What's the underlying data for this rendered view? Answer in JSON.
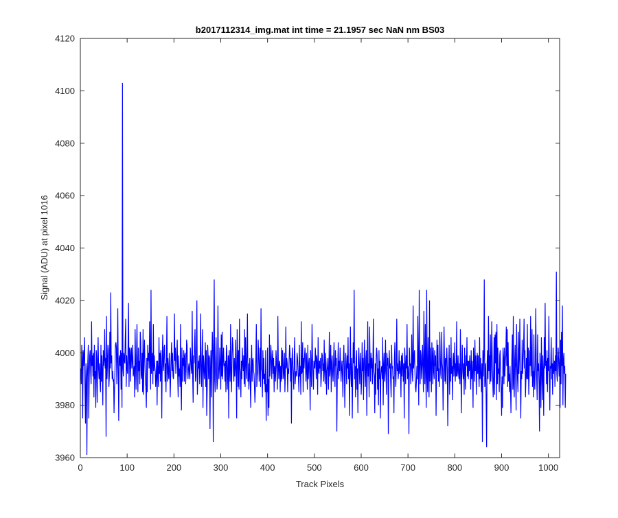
{
  "chart_data": {
    "type": "line",
    "title": "b2017112314_img.mat int time = 21.1957 sec  NaN nm BS03",
    "xlabel": "Track Pixels",
    "ylabel": "Signal (ADU) at pixel 1016",
    "xlim": [
      0,
      1024
    ],
    "ylim": [
      3960,
      4120
    ],
    "xticks": [
      "0",
      "100",
      "200",
      "300",
      "400",
      "500",
      "600",
      "700",
      "800",
      "900",
      "1000"
    ],
    "yticks": [
      "3960",
      "3980",
      "4000",
      "4020",
      "4040",
      "4060",
      "4080",
      "4100",
      "4120"
    ],
    "grid": false,
    "legend": "none",
    "series": [
      {
        "color": "#0000ff",
        "x_start": 1,
        "x_step": 1,
        "values": [
          3994,
          3988,
          4003,
          3998,
          3975,
          4001,
          3995,
          3999,
          4006,
          3985,
          3973,
          3996,
          3993,
          3961,
          3990,
          3997,
          4003,
          3975,
          3991,
          3999,
          4001,
          3993,
          3988,
          4012,
          3995,
          3999,
          3991,
          4000,
          3983,
          4003,
          3990,
          3993,
          3979,
          4001,
          3997,
          3981,
          3998,
          4006,
          3994,
          3990,
          3996,
          3989,
          3985,
          4003,
          3989,
          3999,
          3993,
          3980,
          4001,
          3995,
          3997,
          4009,
          3994,
          3998,
          3968,
          4014,
          3990,
          3996,
          4003,
          4001,
          3987,
          3991,
          4008,
          3994,
          4023,
          3996,
          3999,
          3990,
          3993,
          3989,
          3990,
          3977,
          3986,
          3993,
          4003,
          4004,
          4002,
          3988,
          3997,
          4017,
          3993,
          3974,
          3998,
          3999,
          3995,
          4001,
          3986,
          4000,
          3979,
          4103,
          3994,
          3991,
          4000,
          3998,
          3996,
          4006,
          4013,
          3987,
          3999,
          3994,
          3992,
          4003,
          4019,
          3987,
          4002,
          4001,
          3989,
          3999,
          4002,
          3994,
          3997,
          4003,
          3991,
          3993,
          3995,
          3983,
          4009,
          3997,
          3986,
          3998,
          4011,
          3994,
          3985,
          4002,
          3993,
          3997,
          3988,
          4008,
          4004,
          3990,
          3992,
          4000,
          3985,
          4009,
          3984,
          3999,
          4005,
          3996,
          3989,
          3987,
          3979,
          3998,
          3985,
          4003,
          3997,
          4000,
          3994,
          4012,
          3997,
          3986,
          4024,
          3992,
          3997,
          4000,
          3988,
          4011,
          3993,
          3999,
          3995,
          3993,
          3987,
          3991,
          3997,
          3980,
          3997,
          3993,
          3987,
          4006,
          3992,
          4000,
          3989,
          4001,
          3995,
          3975,
          3998,
          4007,
          3993,
          3995,
          4002,
          4003,
          3989,
          3996,
          3985,
          3998,
          4014,
          3989,
          3998,
          3993,
          3990,
          4000,
          3994,
          3983,
          3991,
          3998,
          4004,
          3993,
          4000,
          3991,
          3990,
          3996,
          4015,
          3997,
          4002,
          3992,
          3996,
          4000,
          4005,
          3991,
          3983,
          3999,
          3991,
          3994,
          3987,
          4011,
          3988,
          3978,
          4002,
          3989,
          3998,
          3995,
          4001,
          3989,
          3999,
          4000,
          3988,
          3993,
          4005,
          4003,
          3995,
          3990,
          3994,
          3996,
          3992,
          3990,
          4002,
          3998,
          3994,
          3992,
          4016,
          3991,
          3981,
          3999,
          3996,
          4003,
          4009,
          3989,
          3991,
          4003,
          4020,
          3984,
          3990,
          3997,
          3994,
          3999,
          3988,
          3995,
          4015,
          3995,
          3987,
          3998,
          4009,
          3979,
          3999,
          3996,
          3990,
          3993,
          4004,
          3987,
          4001,
          3976,
          3986,
          4003,
          3999,
          3990,
          3999,
          3998,
          3971,
          3993,
          4001,
          3983,
          3998,
          4008,
          4001,
          3966,
          4005,
          4028,
          3990,
          3985,
          3996,
          4006,
          3993,
          3986,
          3989,
          4018,
          3995,
          3990,
          3994,
          4002,
          3995,
          3986,
          4007,
          3991,
          4008,
          3990,
          3997,
          4002,
          3995,
          3996,
          3989,
          3997,
          3985,
          4003,
          4000,
          3986,
          3993,
          3999,
          3975,
          4001,
          3994,
          3989,
          4011,
          3993,
          3985,
          3998,
          4006,
          4003,
          3994,
          3989,
          3998,
          3991,
          3994,
          4005,
          3992,
          3975,
          4009,
          3999,
          3987,
          4001,
          3986,
          4013,
          3994,
          3992,
          3983,
          3997,
          3990,
          4002,
          3996,
          3993,
          3999,
          3988,
          4009,
          3987,
          4006,
          3996,
          3990,
          4000,
          4015,
          3989,
          3996,
          3986,
          3991,
          3998,
          3988,
          3979,
          3994,
          4003,
          3989,
          3997,
          3998,
          3993,
          3992,
          3987,
          3981,
          3987,
          3999,
          4011,
          3987,
          3991,
          3993,
          4005,
          3999,
          3989,
          3995,
          4002,
          3987,
          4017,
          3994,
          3993,
          3983,
          4001,
          3990,
          3998,
          3988,
          3992,
          3985,
          4001,
          3974,
          3988,
          3985,
          4002,
          3976,
          3990,
          3979,
          4007,
          3991,
          3995,
          4003,
          3999,
          3990,
          3997,
          4001,
          3992,
          3998,
          3985,
          3995,
          3993,
          3989,
          4001,
          3997,
          3992,
          3986,
          4014,
          3996,
          3990,
          3996,
          3997,
          3985,
          3995,
          3989,
          4002,
          3990,
          4001,
          3997,
          3990,
          3993,
          4000,
          3985,
          3991,
          4010,
          3994,
          3998,
          3996,
          3985,
          3994,
          3992,
          3997,
          4003,
          4000,
          3989,
          3998,
          3973,
          3996,
          4002,
          3995,
          3991,
          3986,
          3999,
          4006,
          3988,
          3992,
          3993,
          3991,
          4000,
          3998,
          3994,
          3990,
          3985,
          4003,
          3991,
          3995,
          3984,
          4012,
          3992,
          3993,
          4004,
          3985,
          3998,
          3994,
          3999,
          4002,
          3996,
          3989,
          4000,
          3993,
          3986,
          4003,
          3990,
          3995,
          3998,
          3992,
          3978,
          4001,
          3994,
          3987,
          4011,
          3999,
          3992,
          3986,
          3997,
          3995,
          3994,
          4002,
          3998,
          3990,
          3999,
          3996,
          3984,
          4006,
          3993,
          3992,
          3997,
          3994,
          3998,
          3987,
          3991,
          4000,
          3999,
          3993,
          3996,
          3989,
          4005,
          3993,
          3988,
          4000,
          3996,
          3984,
          3993,
          3995,
          3998,
          3986,
          3993,
          4008,
          3991,
          3995,
          4003,
          3985,
          3996,
          3999,
          3992,
          3989,
          3997,
          4004,
          3993,
          3987,
          4001,
          3995,
          3998,
          3970,
          3991,
          3995,
          4004,
          3990,
          3997,
          3993,
          4002,
          3996,
          3989,
          3994,
          3997,
          3991,
          3983,
          3998,
          4003,
          3994,
          3979,
          3992,
          4000,
          3995,
          3988,
          3999,
          3994,
          4006,
          3990,
          3996,
          3976,
          3993,
          4010,
          3992,
          3987,
          3998,
          3975,
          3992,
          4004,
          3996,
          4024,
          3990,
          3995,
          3983,
          3998,
          4001,
          3986,
          3994,
          3977,
          3997,
          4002,
          3993,
          3988,
          4000,
          3996,
          3984,
          3990,
          4004,
          3993,
          3998,
          3982,
          3996,
          4005,
          3993,
          3987,
          3998,
          4001,
          3976,
          3994,
          4012,
          3991,
          3996,
          3983,
          4010,
          3997,
          3989,
          4000,
          3994,
          3998,
          3988,
          3995,
          4013,
          3993,
          3991,
          3977,
          3996,
          3984,
          3998,
          4002,
          3999,
          3986,
          3994,
          3980,
          4001,
          3990,
          3997,
          3975,
          3991,
          3994,
          3995,
          3990,
          4006,
          3980,
          3995,
          4000,
          3989,
          3993,
          4005,
          3992,
          3984,
          4000,
          3995,
          3998,
          3969,
          3993,
          4001,
          3994,
          3996,
          3989,
          3983,
          4003,
          3994,
          3995,
          3990,
          3991,
          3977,
          3998,
          4004,
          3992,
          3987,
          3995,
          4013,
          3993,
          3996,
          3990,
          3993,
          4001,
          3992,
          3997,
          3994,
          3983,
          3999,
          3991,
          4000,
          3995,
          3989,
          3996,
          3975,
          4002,
          3996,
          3988,
          3999,
          3994,
          4011,
          3990,
          3995,
          3992,
          3969,
          4002,
          3995,
          3996,
          3988,
          3994,
          4007,
          3993,
          3989,
          4018,
          3994,
          3998,
          4001,
          3992,
          3987,
          3985,
          3989,
          3995,
          3990,
          4014,
          3998,
          3980,
          4024,
          3995,
          3988,
          4001,
          3999,
          3990,
          3995,
          4003,
          3994,
          3985,
          4016,
          3996,
          3988,
          4011,
          3993,
          3979,
          4024,
          3991,
          3985,
          4006,
          3993,
          3983,
          4020,
          3989,
          4002,
          3995,
          3985,
          4004,
          3999,
          3988,
          4002,
          3993,
          3990,
          4001,
          3995,
          3999,
          3976,
          3992,
          4005,
          3993,
          4003,
          3989,
          3994,
          3987,
          4008,
          3999,
          3992,
          3990,
          4008,
          3996,
          3994,
          3978,
          3992,
          4010,
          3997,
          3989,
          3998,
          3988,
          3998,
          4002,
          3994,
          3972,
          3989,
          3995,
          4003,
          3984,
          3998,
          3989,
          4006,
          3992,
          3995,
          3982,
          3997,
          4000,
          3991,
          3995,
          4004,
          3989,
          3996,
          3991,
          4012,
          3991,
          3993,
          3999,
          3992,
          3990,
          3996,
          3988,
          4009,
          3994,
          3977,
          3995,
          4003,
          3993,
          3990,
          3996,
          3984,
          4002,
          3993,
          3986,
          3999,
          3995,
          4006,
          3991,
          3997,
          3990,
          3997,
          3993,
          3999,
          3994,
          3986,
          4001,
          3990,
          3997,
          3992,
          3979,
          4002,
          3996,
          3989,
          4005,
          3993,
          3999,
          3984,
          3994,
          4000,
          3992,
          3999,
          3992,
          3987,
          4006,
          3990,
          3998,
          3992,
          3985,
          3996,
          3966,
          4001,
          3991,
          3999,
          4028,
          3987,
          3990,
          3996,
          3982,
          3964,
          3996,
          4001,
          3990,
          4014,
          3993,
          3999,
          3988,
          4007,
          3989,
          3995,
          4012,
          3998,
          3990,
          3983,
          3993,
          4006,
          3984,
          4007,
          3996,
          4008,
          3982,
          4011,
          3988,
          4002,
          3992,
          3994,
          3985,
          3999,
          4001,
          3991,
          3986,
          3976,
          3991,
          3979,
          4002,
          3998,
          3988,
          4002,
          3991,
          3997,
          3999,
          4010,
          3995,
          4009,
          3987,
          4004,
          3989,
          3992,
          3985,
          3995,
          3987,
          3977,
          3991,
          3999,
          4007,
          3986,
          4014,
          3988,
          3983,
          3997,
          4003,
          3991,
          3978,
          4011,
          3998,
          3990,
          3985,
          4008,
          3992,
          3998,
          4013,
          3991,
          3975,
          3993,
          3990,
          4005,
          3992,
          3997,
          4002,
          4013,
          3994,
          4001,
          3983,
          3990,
          3998,
          3990,
          4011,
          3990,
          4002,
          3984,
          3992,
          4001,
          3995,
          4014,
          3991,
          3997,
          4009,
          3987,
          3993,
          3983,
          4007,
          3991,
          3986,
          3995,
          4017,
          3998,
          3990,
          3982,
          4007,
          3993,
          3996,
          3988,
          3970,
          4000,
          3994,
          3979,
          4006,
          3994,
          3982,
          3999,
          3993,
          3976,
          4006,
          3994,
          4019,
          3995,
          3997,
          3988,
          4001,
          3985,
          3998,
          3993,
          4014,
          3992,
          3978,
          3995,
          3994,
          4006,
          3990,
          3996,
          3984,
          4002,
          3992,
          3994,
          3997,
          3987,
          3999,
          3993,
          4031,
          3992,
          3989,
          3998,
          4002,
          3996,
          3991,
          3998,
          3979,
          4005,
          3988,
          4008,
          3995,
          4018,
          3980,
          3997,
          4000,
          3992,
          3995,
          3979,
          3992
        ]
      }
    ]
  }
}
